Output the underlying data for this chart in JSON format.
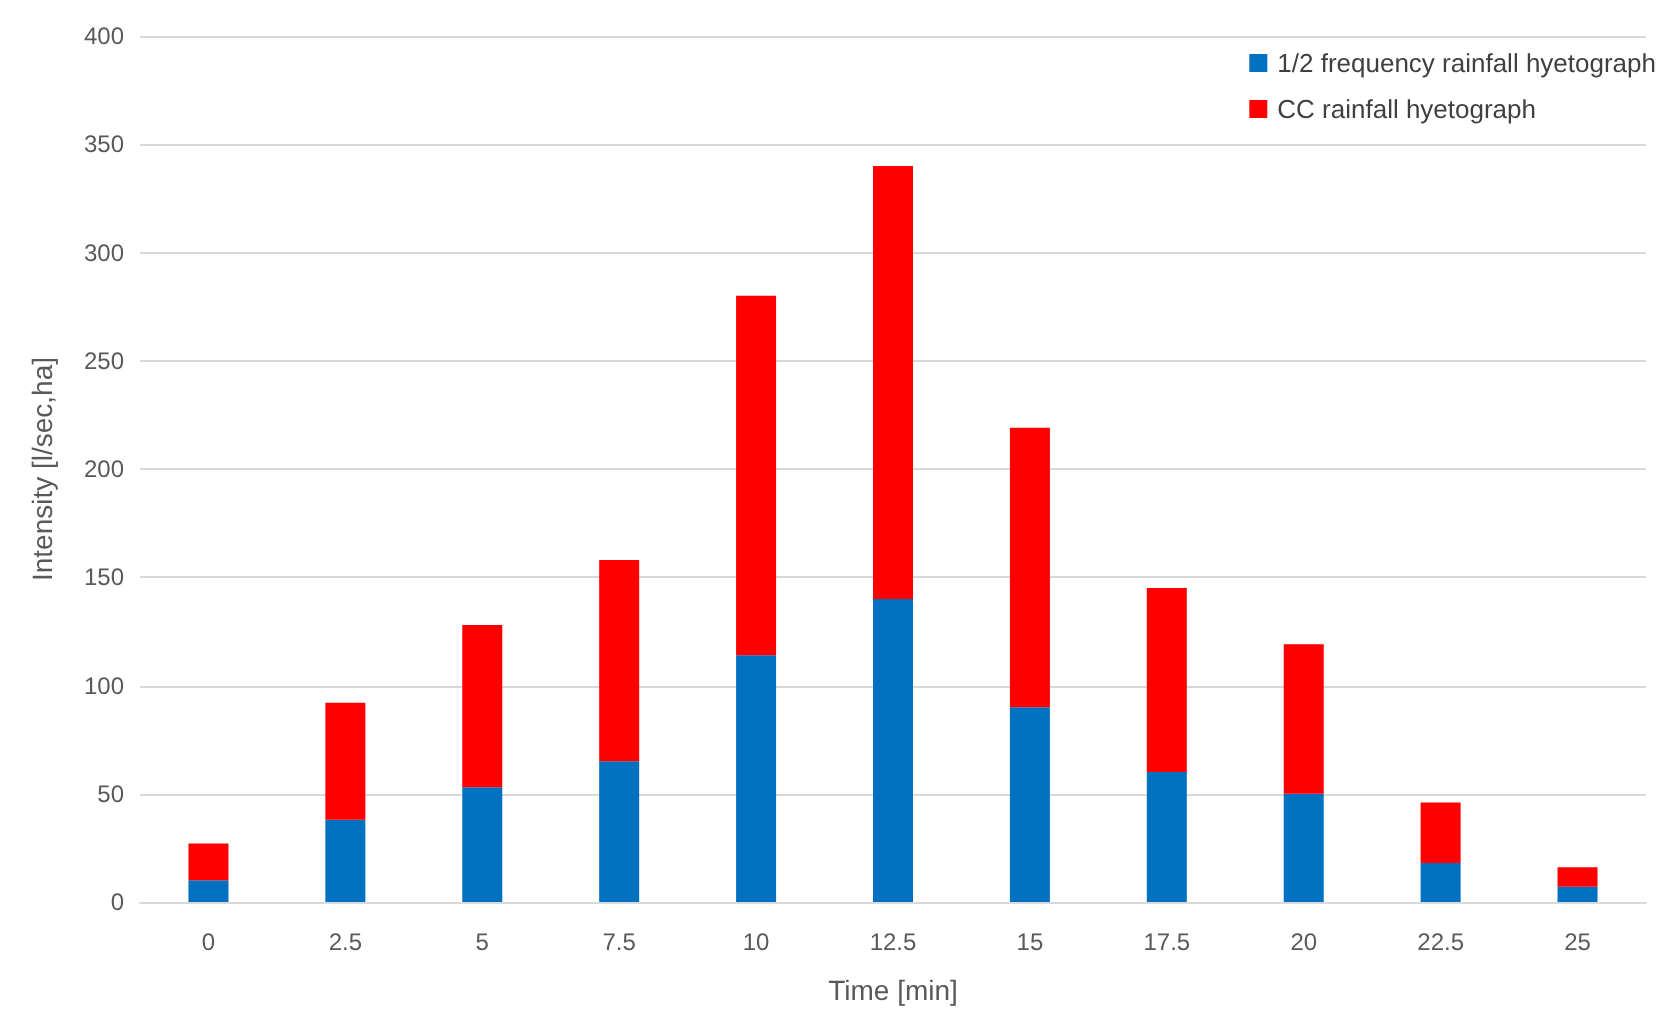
{
  "chart_data": {
    "type": "bar",
    "xlabel": "Time [min]",
    "ylabel": "Intensity [l/sec,ha]",
    "categories": [
      "0",
      "2.5",
      "5",
      "7.5",
      "10",
      "12.5",
      "15",
      "17.5",
      "20",
      "22.5",
      "25"
    ],
    "series": [
      {
        "name": "1/2 frequency rainfall hyetograph",
        "color": "#0070c0",
        "values": [
          10,
          38,
          53,
          65,
          114,
          140,
          90,
          60,
          50,
          18,
          7
        ]
      },
      {
        "name": "CC rainfall hyetograph",
        "color": "#ff0000",
        "values": [
          17,
          54,
          75,
          93,
          166,
          200,
          129,
          85,
          69,
          28,
          9
        ]
      }
    ],
    "stacked": true,
    "ylim": [
      0,
      400
    ],
    "yticks": [
      0,
      50,
      100,
      150,
      200,
      250,
      300,
      350,
      400
    ],
    "grid": "y",
    "legend": "top right"
  }
}
